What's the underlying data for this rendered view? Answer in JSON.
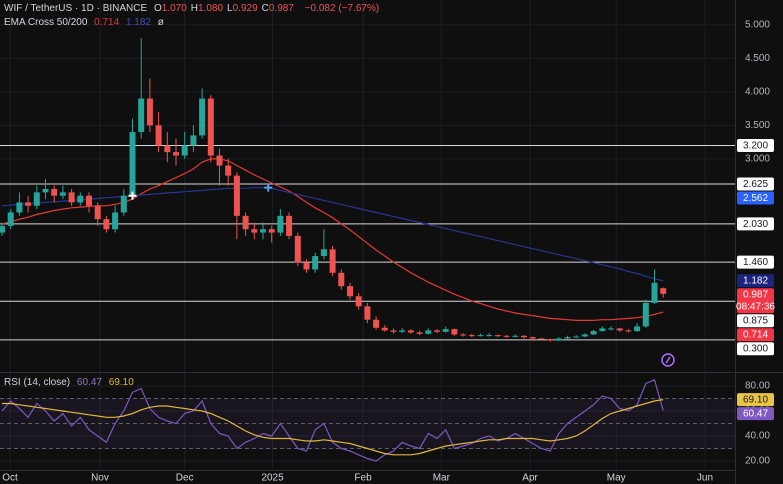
{
  "chart_data": [
    {
      "type": "candlestick",
      "legend": {
        "symbol": "WIF / TetherUS · 1D · BINANCE",
        "ohlc": [
          {
            "key": "O",
            "value": "1.070"
          },
          {
            "key": "H",
            "value": "1.080"
          },
          {
            "key": "L",
            "value": "0.929"
          },
          {
            "key": "C",
            "value": "0.987"
          }
        ],
        "change": "−0.082 (−7.67%)",
        "indicator": "EMA Cross 50/200",
        "indicator_values": [
          "0.714",
          "1.182"
        ],
        "indicator_suffix": "ø"
      },
      "up_color": "#26a69a",
      "down_color": "#ef5350",
      "candles": [
        [
          1.9,
          2.05,
          1.85,
          2.0
        ],
        [
          2.0,
          2.25,
          1.95,
          2.2
        ],
        [
          2.2,
          2.5,
          2.15,
          2.35
        ],
        [
          2.35,
          2.45,
          2.2,
          2.3
        ],
        [
          2.3,
          2.6,
          2.25,
          2.5
        ],
        [
          2.5,
          2.7,
          2.4,
          2.55
        ],
        [
          2.55,
          2.6,
          2.35,
          2.45
        ],
        [
          2.45,
          2.6,
          2.4,
          2.5
        ],
        [
          2.5,
          2.55,
          2.3,
          2.35
        ],
        [
          2.35,
          2.5,
          2.3,
          2.45
        ],
        [
          2.45,
          2.5,
          2.2,
          2.3
        ],
        [
          2.3,
          2.35,
          2.0,
          2.1
        ],
        [
          2.1,
          2.15,
          1.9,
          1.95
        ],
        [
          1.95,
          2.3,
          1.9,
          2.2
        ],
        [
          2.2,
          2.55,
          2.15,
          2.45
        ],
        [
          2.45,
          3.6,
          2.4,
          3.4
        ],
        [
          3.4,
          4.8,
          3.3,
          3.9
        ],
        [
          3.9,
          4.2,
          3.4,
          3.5
        ],
        [
          3.5,
          3.7,
          3.1,
          3.2
        ],
        [
          3.2,
          3.4,
          2.95,
          3.1
        ],
        [
          3.1,
          3.3,
          2.9,
          3.05
        ],
        [
          3.05,
          3.4,
          3.0,
          3.2
        ],
        [
          3.2,
          3.5,
          3.1,
          3.35
        ],
        [
          3.35,
          4.05,
          3.3,
          3.9
        ],
        [
          3.9,
          3.95,
          2.95,
          3.05
        ],
        [
          3.05,
          3.15,
          2.6,
          2.9
        ],
        [
          2.9,
          3.0,
          2.6,
          2.75
        ],
        [
          2.75,
          2.8,
          1.8,
          2.15
        ],
        [
          2.15,
          2.2,
          1.85,
          1.95
        ],
        [
          1.95,
          2.05,
          1.8,
          1.9
        ],
        [
          1.9,
          2.05,
          1.8,
          1.95
        ],
        [
          1.95,
          2.0,
          1.75,
          1.9
        ],
        [
          1.9,
          2.25,
          1.85,
          2.15
        ],
        [
          2.15,
          2.2,
          1.8,
          1.85
        ],
        [
          1.85,
          1.9,
          1.4,
          1.45
        ],
        [
          1.45,
          1.5,
          1.3,
          1.35
        ],
        [
          1.35,
          1.6,
          1.3,
          1.55
        ],
        [
          1.55,
          1.95,
          1.5,
          1.65
        ],
        [
          1.65,
          1.7,
          1.25,
          1.3
        ],
        [
          1.3,
          1.35,
          1.05,
          1.1
        ],
        [
          1.1,
          1.15,
          0.9,
          0.95
        ],
        [
          0.95,
          1.0,
          0.75,
          0.8
        ],
        [
          0.8,
          0.85,
          0.55,
          0.6
        ],
        [
          0.6,
          0.65,
          0.45,
          0.48
        ],
        [
          0.48,
          0.52,
          0.42,
          0.44
        ],
        [
          0.44,
          0.47,
          0.39,
          0.42
        ],
        [
          0.42,
          0.48,
          0.4,
          0.44
        ],
        [
          0.44,
          0.46,
          0.39,
          0.41
        ],
        [
          0.41,
          0.43,
          0.37,
          0.39
        ],
        [
          0.39,
          0.47,
          0.38,
          0.44
        ],
        [
          0.44,
          0.46,
          0.4,
          0.42
        ],
        [
          0.42,
          0.5,
          0.41,
          0.46
        ],
        [
          0.46,
          0.47,
          0.36,
          0.38
        ],
        [
          0.38,
          0.4,
          0.35,
          0.37
        ],
        [
          0.37,
          0.39,
          0.34,
          0.36
        ],
        [
          0.36,
          0.39,
          0.35,
          0.37
        ],
        [
          0.37,
          0.4,
          0.35,
          0.37
        ],
        [
          0.37,
          0.38,
          0.34,
          0.36
        ],
        [
          0.36,
          0.37,
          0.33,
          0.35
        ],
        [
          0.35,
          0.38,
          0.34,
          0.36
        ],
        [
          0.36,
          0.37,
          0.32,
          0.34
        ],
        [
          0.34,
          0.35,
          0.3,
          0.32
        ],
        [
          0.32,
          0.33,
          0.29,
          0.31
        ],
        [
          0.31,
          0.32,
          0.27,
          0.29
        ],
        [
          0.29,
          0.34,
          0.28,
          0.32
        ],
        [
          0.32,
          0.36,
          0.31,
          0.34
        ],
        [
          0.34,
          0.37,
          0.33,
          0.35
        ],
        [
          0.35,
          0.4,
          0.34,
          0.38
        ],
        [
          0.38,
          0.45,
          0.37,
          0.43
        ],
        [
          0.43,
          0.5,
          0.42,
          0.47
        ],
        [
          0.47,
          0.5,
          0.44,
          0.47
        ],
        [
          0.47,
          0.48,
          0.42,
          0.44
        ],
        [
          0.44,
          0.46,
          0.41,
          0.43
        ],
        [
          0.43,
          0.55,
          0.42,
          0.5
        ],
        [
          0.5,
          0.9,
          0.48,
          0.85
        ],
        [
          0.85,
          1.35,
          0.84,
          1.15
        ],
        [
          1.07,
          1.08,
          0.929,
          0.987
        ]
      ],
      "series": [
        {
          "color": "#e53935",
          "values": [
            2.03,
            2.06,
            2.1,
            2.13,
            2.17,
            2.2,
            2.23,
            2.25,
            2.27,
            2.28,
            2.29,
            2.3,
            2.3,
            2.32,
            2.35,
            2.4,
            2.48,
            2.55,
            2.6,
            2.66,
            2.72,
            2.78,
            2.85,
            2.95,
            3.0,
            3.0,
            2.97,
            2.9,
            2.83,
            2.76,
            2.7,
            2.64,
            2.58,
            2.52,
            2.44,
            2.35,
            2.27,
            2.2,
            2.12,
            2.03,
            1.94,
            1.84,
            1.74,
            1.64,
            1.55,
            1.46,
            1.38,
            1.3,
            1.23,
            1.16,
            1.1,
            1.04,
            0.98,
            0.93,
            0.88,
            0.84,
            0.8,
            0.76,
            0.73,
            0.7,
            0.68,
            0.66,
            0.64,
            0.62,
            0.61,
            0.6,
            0.59,
            0.59,
            0.59,
            0.6,
            0.6,
            0.61,
            0.62,
            0.63,
            0.65,
            0.68,
            0.714
          ]
        },
        {
          "color": "#283593",
          "values": [
            2.3,
            2.31,
            2.32,
            2.33,
            2.34,
            2.35,
            2.36,
            2.37,
            2.38,
            2.39,
            2.4,
            2.41,
            2.42,
            2.43,
            2.44,
            2.45,
            2.46,
            2.47,
            2.48,
            2.49,
            2.5,
            2.51,
            2.52,
            2.53,
            2.54,
            2.55,
            2.56,
            2.56,
            2.56,
            2.57,
            2.57,
            2.56,
            2.53,
            2.5,
            2.47,
            2.44,
            2.41,
            2.38,
            2.35,
            2.32,
            2.29,
            2.26,
            2.23,
            2.2,
            2.17,
            2.14,
            2.11,
            2.08,
            2.05,
            2.02,
            1.99,
            1.96,
            1.93,
            1.9,
            1.87,
            1.84,
            1.81,
            1.78,
            1.75,
            1.72,
            1.69,
            1.66,
            1.63,
            1.6,
            1.57,
            1.54,
            1.51,
            1.48,
            1.45,
            1.42,
            1.39,
            1.36,
            1.32,
            1.29,
            1.25,
            1.21,
            1.182
          ]
        }
      ],
      "xticks": [
        {
          "value": 0.92,
          "label": "Oct"
        },
        {
          "value": 11.26,
          "label": "Nov"
        },
        {
          "value": 21.0,
          "label": "Dec"
        },
        {
          "value": 31.1,
          "label": "2025"
        },
        {
          "value": 41.5,
          "label": "Feb"
        },
        {
          "value": 50.5,
          "label": "Mar"
        },
        {
          "value": 60.7,
          "label": "Apr"
        },
        {
          "value": 70.6,
          "label": "May"
        },
        {
          "value": 80.8,
          "label": "Jun"
        }
      ],
      "ylim": [
        -0.18,
        5.37
      ],
      "yticks": [
        {
          "value": 5,
          "label": "5.000"
        },
        {
          "value": 4.5,
          "label": "4.500"
        },
        {
          "value": 4,
          "label": "4.000"
        },
        {
          "value": 3.5,
          "label": "3.500"
        },
        {
          "value": 3,
          "label": "3.000"
        }
      ],
      "levels": [
        {
          "value": 3.2,
          "label": "3.200"
        },
        {
          "value": 2.625,
          "label": "2.625"
        },
        {
          "value": 2.03,
          "label": "2.030"
        },
        {
          "value": 1.46,
          "label": "1.460"
        },
        {
          "value": 0.875,
          "label": "0.875"
        },
        {
          "value": 0.3,
          "label": "0.300"
        }
      ],
      "badges": [
        {
          "value": 2.562,
          "label": "2.562",
          "color": "#2962ff"
        },
        {
          "value": 1.182,
          "label": "1.182",
          "color": "#1a237e"
        },
        {
          "value": 0.987,
          "label": "0.987",
          "sublabel": "08:47:36",
          "color": "#f23645"
        },
        {
          "value": 0.714,
          "label": "0.714",
          "color": "#f23645"
        }
      ],
      "cross_markers": [
        {
          "x": 15,
          "y": 2.45,
          "color": "#ffffff"
        },
        {
          "x": 30.6,
          "y": 2.57,
          "color": "#5b9cf6"
        }
      ]
    },
    {
      "type": "rsi",
      "title": "RSI (14, close)",
      "legend_values": [
        "60.47",
        "69.10"
      ],
      "series": [
        {
          "color": "#7e57c2",
          "values": [
            60,
            68,
            62,
            55,
            66,
            60,
            52,
            58,
            48,
            55,
            45,
            40,
            35,
            50,
            60,
            75,
            78,
            62,
            55,
            52,
            50,
            58,
            60,
            68,
            50,
            42,
            40,
            30,
            35,
            38,
            42,
            40,
            50,
            40,
            30,
            28,
            45,
            50,
            35,
            30,
            28,
            25,
            22,
            20,
            25,
            28,
            35,
            32,
            30,
            42,
            38,
            45,
            30,
            32,
            34,
            38,
            40,
            36,
            38,
            42,
            38,
            34,
            30,
            28,
            42,
            50,
            55,
            60,
            65,
            72,
            70,
            62,
            60,
            65,
            82,
            85,
            60.47
          ]
        },
        {
          "color": "#e0b83a",
          "values": [
            66,
            66,
            65,
            64,
            63,
            62,
            61,
            60,
            59,
            58,
            57,
            56,
            55,
            55,
            56,
            58,
            61,
            63,
            64,
            64,
            63,
            62,
            61,
            60,
            58,
            55,
            52,
            48,
            44,
            41,
            39,
            38,
            38,
            38,
            37,
            36,
            36,
            37,
            36,
            35,
            34,
            32,
            30,
            28,
            26,
            25,
            25,
            25,
            26,
            28,
            30,
            32,
            33,
            34,
            35,
            36,
            37,
            37,
            38,
            38,
            38,
            38,
            37,
            36,
            37,
            38,
            40,
            44,
            49,
            54,
            58,
            60,
            62,
            64,
            66,
            68,
            69.1
          ]
        }
      ],
      "ylim": [
        12.8,
        89.6
      ],
      "yticks": [
        {
          "value": 80,
          "label": "80.00"
        },
        {
          "value": 60,
          "label": "60.00"
        },
        {
          "value": 40,
          "label": "40.00"
        },
        {
          "value": 20,
          "label": "20.00"
        }
      ],
      "bands": [
        70,
        50,
        30
      ],
      "badges": [
        {
          "value": 69.1,
          "label": "69.10",
          "color": "#e8c547"
        },
        {
          "value": 60.47,
          "label": "60.47",
          "color": "#7e57c2"
        }
      ]
    }
  ]
}
